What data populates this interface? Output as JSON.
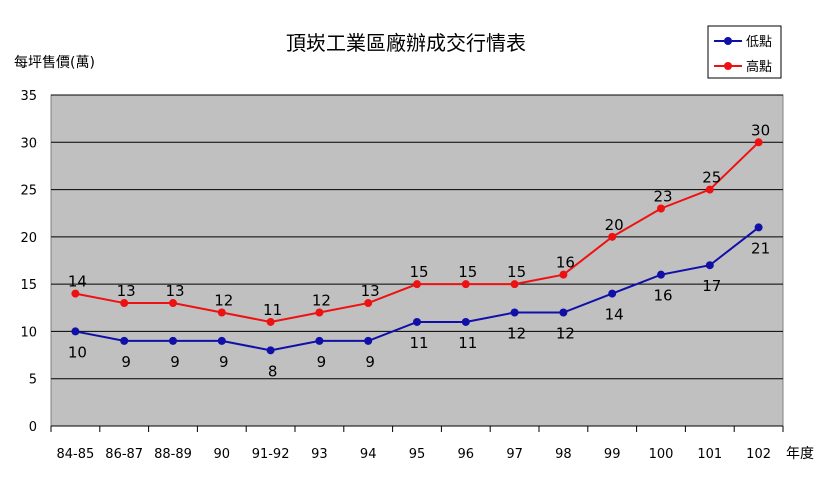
{
  "colors": {
    "plot_background": "#c0c0c0",
    "grid": "#000000",
    "low": "#1010a8",
    "high": "#ee1111"
  },
  "chart_data": {
    "type": "line",
    "title": "頂崁工業區廠辦成交行情表",
    "ylabel": "每坪售價(萬)",
    "xlabel": "年度",
    "ylim": [
      0,
      35
    ],
    "yticks": [
      0,
      5,
      10,
      15,
      20,
      25,
      30,
      35
    ],
    "grid": true,
    "legend_position": "top-right",
    "categories": [
      "84-85",
      "86-87",
      "88-89",
      "90",
      "91-92",
      "93",
      "94",
      "95",
      "96",
      "97",
      "98",
      "99",
      "100",
      "101",
      "102"
    ],
    "series": [
      {
        "name": "低點",
        "color": "#1010a8",
        "label_position": "below",
        "values": [
          10,
          9,
          9,
          9,
          8,
          9,
          9,
          11,
          11,
          12,
          12,
          14,
          16,
          17,
          21
        ]
      },
      {
        "name": "高點",
        "color": "#ee1111",
        "label_position": "above",
        "values": [
          14,
          13,
          13,
          12,
          11,
          12,
          13,
          15,
          15,
          15,
          16,
          20,
          23,
          25,
          30
        ]
      }
    ]
  }
}
